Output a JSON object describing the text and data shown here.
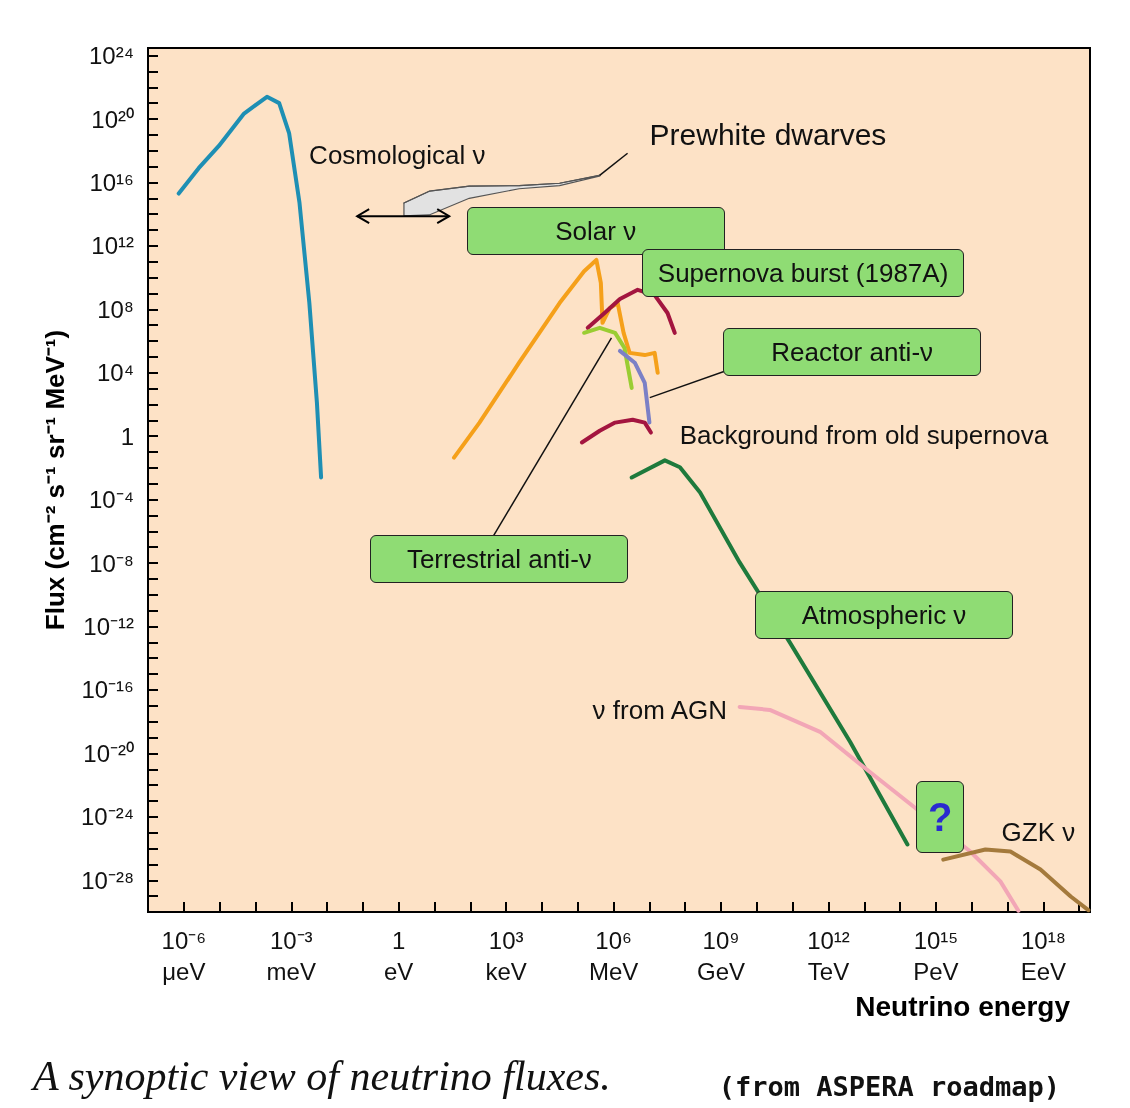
{
  "chart_data": {
    "type": "line",
    "title": "A synoptic view of neutrino fluxes.",
    "xlabel": "Neutrino energy",
    "ylabel": "Flux (cm⁻² s⁻¹ sr⁻¹ MeV⁻¹)",
    "log": "xy",
    "marker": "none",
    "line_style": "solid",
    "xlim": [
      1e-07,
      2e+19
    ],
    "ylim": [
      1e-30,
      3e+24
    ],
    "xticks": [
      {
        "value": 1e-06,
        "label": "10⁻⁶"
      },
      {
        "value": 1e-05,
        "label": null
      },
      {
        "value": 0.0001,
        "label": null
      },
      {
        "value": 0.001,
        "label": "10⁻³"
      },
      {
        "value": 0.01,
        "label": null
      },
      {
        "value": 0.1,
        "label": null
      },
      1,
      {
        "value": 10,
        "label": null
      },
      {
        "value": 100,
        "label": null
      },
      {
        "value": 1000.0,
        "label": "10³"
      },
      {
        "value": 10000.0,
        "label": null
      },
      {
        "value": 100000.0,
        "label": null
      },
      {
        "value": 1000000.0,
        "label": "10⁶"
      },
      {
        "value": 10000000.0,
        "label": null
      },
      {
        "value": 100000000.0,
        "label": null
      },
      {
        "value": 1000000000.0,
        "label": "10⁹"
      },
      {
        "value": 10000000000.0,
        "label": null
      },
      {
        "value": 100000000000.0,
        "label": null
      },
      {
        "value": 1000000000000.0,
        "label": "10¹²"
      },
      {
        "value": 10000000000000.0,
        "label": null
      },
      {
        "value": 100000000000000.0,
        "label": null
      },
      {
        "value": 1000000000000000.0,
        "label": "10¹⁵"
      },
      {
        "value": 1e+16,
        "label": null
      },
      {
        "value": 1e+17,
        "label": null
      },
      {
        "value": 1e+18,
        "label": "10¹⁸"
      },
      {
        "value": 1e+19,
        "label": null
      }
    ],
    "yticks": [
      {
        "value": 1e-29,
        "label": null
      },
      {
        "value": 1e-28,
        "label": "10⁻²⁸"
      },
      {
        "value": 1e-27,
        "label": null
      },
      {
        "value": 1e-26,
        "label": null
      },
      {
        "value": 1e-25,
        "label": null
      },
      {
        "value": 1e-24,
        "label": "10⁻²⁴"
      },
      {
        "value": 1e-23,
        "label": null
      },
      {
        "value": 1e-22,
        "label": null
      },
      {
        "value": 1e-21,
        "label": null
      },
      {
        "value": 1e-20,
        "label": "10⁻²⁰"
      },
      {
        "value": 1e-19,
        "label": null
      },
      {
        "value": 1e-18,
        "label": null
      },
      {
        "value": 1e-17,
        "label": null
      },
      {
        "value": 1e-16,
        "label": "10⁻¹⁶"
      },
      {
        "value": 1e-15,
        "label": null
      },
      {
        "value": 1e-14,
        "label": null
      },
      {
        "value": 1e-13,
        "label": null
      },
      {
        "value": 1e-12,
        "label": "10⁻¹²"
      },
      {
        "value": 1e-11,
        "label": null
      },
      {
        "value": 1e-10,
        "label": null
      },
      {
        "value": 1e-09,
        "label": null
      },
      {
        "value": 1e-08,
        "label": "10⁻⁸"
      },
      {
        "value": 1e-07,
        "label": null
      },
      {
        "value": 1e-06,
        "label": null
      },
      {
        "value": 1e-05,
        "label": null
      },
      {
        "value": 0.0001,
        "label": "10⁻⁴"
      },
      {
        "value": 0.001,
        "label": null
      },
      {
        "value": 0.01,
        "label": null
      },
      {
        "value": 0.1,
        "label": null
      },
      1,
      {
        "value": 10,
        "label": null
      },
      {
        "value": 100,
        "label": null
      },
      {
        "value": 1000.0,
        "label": null
      },
      {
        "value": 10000.0,
        "label": "10⁴"
      },
      {
        "value": 100000.0,
        "label": null
      },
      {
        "value": 1000000.0,
        "label": null
      },
      {
        "value": 10000000.0,
        "label": null
      },
      {
        "value": 100000000.0,
        "label": "10⁸"
      },
      {
        "value": 1000000000.0,
        "label": null
      },
      {
        "value": 10000000000.0,
        "label": null
      },
      {
        "value": 100000000000.0,
        "label": null
      },
      {
        "value": 1000000000000.0,
        "label": "10¹²"
      },
      {
        "value": 10000000000000.0,
        "label": null
      },
      {
        "value": 100000000000000.0,
        "label": null
      },
      {
        "value": 1000000000000000.0,
        "label": null
      },
      {
        "value": 1e+16,
        "label": "10¹⁶"
      },
      {
        "value": 1e+17,
        "label": null
      },
      {
        "value": 1e+18,
        "label": null
      },
      {
        "value": 1e+19,
        "label": null
      },
      {
        "value": 1e+20,
        "label": "10²⁰"
      },
      {
        "value": 1e+21,
        "label": null
      },
      {
        "value": 1e+22,
        "label": null
      },
      {
        "value": 1e+23,
        "label": null
      },
      {
        "value": 1e+24,
        "label": "10²⁴"
      }
    ],
    "annotations": [
      "?",
      "μeV",
      "meV",
      "eV",
      "keV",
      "MeV",
      "GeV",
      "TeV",
      "PeV",
      "EeV",
      "(from ASPERA roadmap)"
    ],
    "series": [
      {
        "name": "Cosmological ν",
        "color": "#1e8fb4",
        "x": [
          7.2e-07,
          2.6e-06,
          9.5e-06,
          4.8e-05,
          0.00021,
          0.00046,
          0.00087,
          0.0017,
          0.0032,
          0.0052,
          0.0068
        ],
        "values": [
          2000000000000000.0,
          7.9e+16,
          2e+18,
          2.2e+20,
          2.5e+21,
          1e+21,
          1.3e+19,
          500000000000000.0,
          250000000.0,
          130,
          0.0025
        ]
      },
      {
        "name": "Prewhite dwarves",
        "color": "#555555",
        "x": [
          1.4,
          7.1,
          93,
          2300,
          31000,
          410000
        ],
        "values": [
          500000000000000.0,
          2800000000000000.0,
          5800000000000000.0,
          6300000000000000.0,
          8900000000000000.0,
          2.8e+16
        ],
        "upper": [
          500000000000000.0,
          2800000000000000.0,
          5800000000000000.0,
          6300000000000000.0,
          8900000000000000.0,
          2.8e+16
        ],
        "lower": [
          79000000000000.0,
          89000000000000.0,
          1000000000000000.0,
          4000000000000000.0,
          6300000000000000.0,
          2.5e+16
        ]
      },
      {
        "name": "Solar ν",
        "color": "#f5a01a",
        "x": [
          35,
          180,
          2300,
          31000,
          150000.0,
          330000.0,
          440000.0,
          490000.0,
          780000.0,
          1300000.0,
          1900000.0,
          2800000.0,
          7400000.0,
          14000000.0,
          17000000.0
        ],
        "values": [
          0.045,
          7.2,
          43000,
          250000000.0,
          25000000000.0,
          130000000000.0,
          4600000000.0,
          14000000.0,
          120000000.0,
          250000000.0,
          3300000.0,
          180000.0,
          130000.0,
          180000.0,
          10000.0
        ]
      },
      {
        "name": "Supernova burst (1987A)",
        "color": "#a3153f",
        "x": [
          190000.0,
          560000.0,
          1500000.0,
          4700000.0,
          14000000.0,
          32000000.0,
          51000000.0
        ],
        "values": [
          6800000.0,
          59000000.0,
          450000000.0,
          1700000000.0,
          790000000.0,
          59000000.0,
          3300000.0
        ]
      },
      {
        "name": "Terrestrial anti-ν",
        "color": "#9acd32",
        "x": [
          150000.0,
          410000.0,
          1100000.0,
          2000000.0,
          3200000.0
        ],
        "values": [
          3300000.0,
          6800000.0,
          3300000.0,
          380000.0,
          1100
        ]
      },
      {
        "name": "Reactor anti-ν",
        "color": "#7b80c6",
        "x": [
          1500000.0,
          3900000.0,
          7400000.0,
          10000000.0
        ],
        "values": [
          240000.0,
          43000,
          2300,
          7.2
        ]
      },
      {
        "name": "Background from old supernova",
        "color": "#a3153f",
        "x": [
          130000.0,
          410000.0,
          1100000.0,
          3400000.0,
          7400000.0,
          11000000.0
        ],
        "values": [
          0.4,
          2.2,
          7.2,
          11,
          7.2,
          1.7
        ]
      },
      {
        "name": "Atmospheric ν",
        "color": "#1e7a3c",
        "x": [
          3200000.0,
          27000000.0,
          71000000.0,
          260000000.0,
          3300000000.0,
          83000000000.0,
          4000000000000.0,
          160000000000000.0
        ],
        "values": [
          0.0025,
          0.03,
          0.011,
          0.00028,
          1.1e-08,
          1e-13,
          5.4e-20,
          1.8e-26
        ]
      },
      {
        "name": "ν from AGN",
        "color": "#f2a6b6",
        "x": [
          3300000000.0,
          23000000000.0,
          580000000000.0,
          14000000000000.0,
          360000000000000.0,
          9100000000000000.0,
          6.3e+16,
          2e+17
        ],
        "values": [
          8.5e-18,
          5.5e-18,
          2.3e-19,
          6.9e-22,
          null,
          6.5e-27,
          8.5e-29,
          1.2e-30
        ]
      },
      {
        "name": "GZK ν",
        "color": "#a47a3c",
        "x": [
          1600000000000000.0,
          2.4e+16,
          1.2e+17,
          8.3e+17,
          5.8e+18,
          1.8e+19
        ],
        "values": [
          2e-27,
          8.7e-27,
          6.5e-27,
          4.8e-28,
          9.5e-30,
          1.3e-30
        ]
      }
    ]
  }
}
